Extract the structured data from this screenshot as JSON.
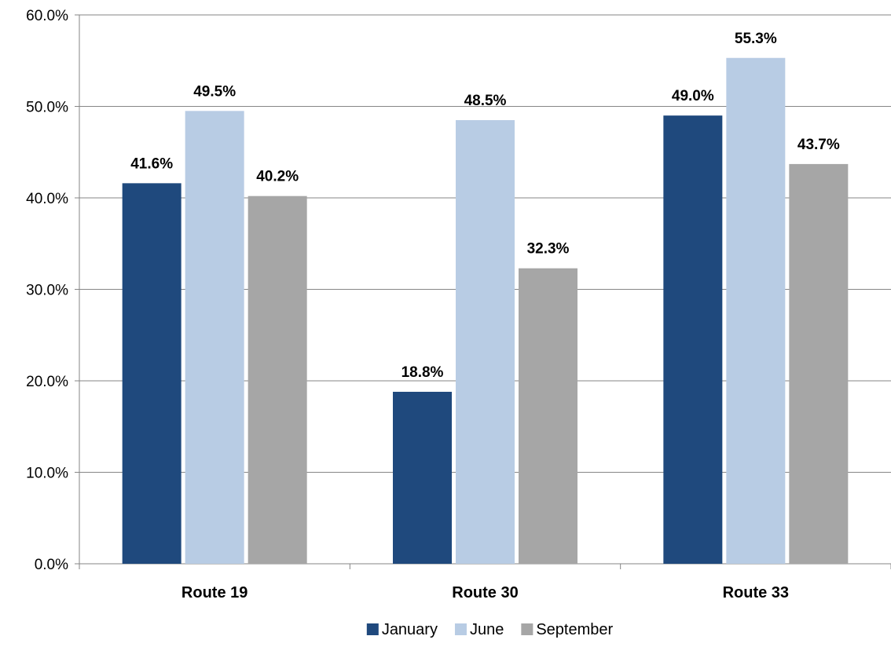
{
  "chart_data": {
    "type": "bar",
    "categories": [
      "Route 19",
      "Route 30",
      "Route 33"
    ],
    "series": [
      {
        "name": "January",
        "values": [
          41.6,
          18.8,
          49.0
        ],
        "color": "#1F497D"
      },
      {
        "name": "June",
        "values": [
          49.5,
          48.5,
          55.3
        ],
        "color": "#B8CCE4"
      },
      {
        "name": "September",
        "values": [
          40.2,
          32.3,
          43.7
        ],
        "color": "#A6A6A6"
      }
    ],
    "data_labels": [
      [
        "41.6%",
        "18.8%",
        "49.0%"
      ],
      [
        "49.5%",
        "48.5%",
        "55.3%"
      ],
      [
        "40.2%",
        "32.3%",
        "43.7%"
      ]
    ],
    "ylim": [
      0,
      60
    ],
    "y_ticks": [
      0,
      10,
      20,
      30,
      40,
      50,
      60
    ],
    "y_tick_labels": [
      "0.0%",
      "10.0%",
      "20.0%",
      "30.0%",
      "40.0%",
      "50.0%",
      "60.0%"
    ],
    "grid": true,
    "legend_position": "bottom",
    "title": "",
    "xlabel": "",
    "ylabel": ""
  }
}
